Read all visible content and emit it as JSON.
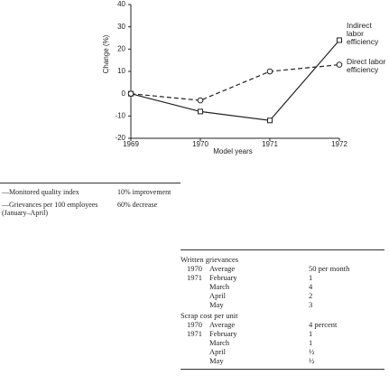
{
  "chart_data": {
    "type": "line",
    "y_label": "Change (%)",
    "x_label": "Model years",
    "categories": [
      "1969",
      "1970",
      "1971",
      "1972"
    ],
    "series": [
      {
        "name": "Indirect labor efficiency",
        "color": "#222222",
        "dash": false,
        "marker": "square",
        "values": [
          0,
          -8,
          -12,
          24
        ]
      },
      {
        "name": "Direct labor efficiency",
        "color": "#222222",
        "dash": true,
        "marker": "circle",
        "values": [
          0,
          -3,
          10,
          13
        ]
      }
    ],
    "ylim": [
      -20,
      40
    ],
    "yticks": [
      -20,
      -10,
      0,
      10,
      20,
      30,
      40
    ]
  },
  "summary_table": {
    "rows": [
      [
        "—Monitored quality index",
        "10% improvement"
      ],
      [
        "—Grievances per 100 employees (January–April)",
        "60% decrease"
      ]
    ]
  },
  "detail_table": {
    "sections": [
      {
        "title": "Written grievances",
        "rows": [
          {
            "year": "1970",
            "month": "Average",
            "value": "50 per month"
          },
          {
            "year": "1971",
            "month": "February",
            "value": "1"
          },
          {
            "month": "March",
            "value": "4"
          },
          {
            "month": "April",
            "value": "2"
          },
          {
            "month": "May",
            "value": "3"
          }
        ]
      },
      {
        "title": "Scrap cost per unit",
        "rows": [
          {
            "year": "1970",
            "month": "Average",
            "value": "4 percent"
          },
          {
            "year": "1971",
            "month": "February",
            "value": "1"
          },
          {
            "month": "March",
            "value": "1"
          },
          {
            "month": "April",
            "value": "½"
          },
          {
            "month": "May",
            "value": "½"
          }
        ]
      }
    ]
  }
}
